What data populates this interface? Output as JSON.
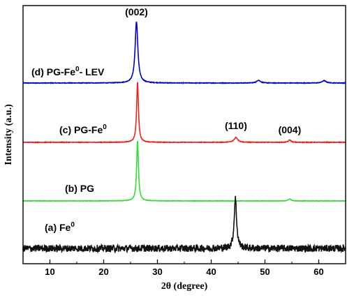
{
  "chart_data": {
    "type": "line",
    "title": "",
    "xlabel": "2θ (degree)",
    "ylabel": "Intensity (a.u.)",
    "xlim": [
      5,
      65
    ],
    "x_ticks": [
      "10",
      "20",
      "30",
      "40",
      "50",
      "60"
    ],
    "y_ticks_labeled": false,
    "grid": false,
    "legend": "inline",
    "series": [
      {
        "name": "(d) PG-Fe",
        "name_superscript": "0",
        "name_suffix": "- LEV",
        "color": "#0000cc",
        "baseline": 0.0,
        "noise": 0.004,
        "peaks": [
          {
            "x": 26.1,
            "height": 0.88,
            "width": 0.45
          },
          {
            "x": 48.8,
            "height": 0.04,
            "width": 0.6
          },
          {
            "x": 61.0,
            "height": 0.035,
            "width": 0.6
          }
        ]
      },
      {
        "name": "(c) PG-Fe",
        "name_superscript": "0",
        "name_suffix": "",
        "color": "#ee2222",
        "baseline": 0.0,
        "noise": 0.004,
        "peaks": [
          {
            "x": 26.3,
            "height": 0.86,
            "width": 0.3
          },
          {
            "x": 44.6,
            "height": 0.07,
            "width": 0.6
          },
          {
            "x": 54.6,
            "height": 0.035,
            "width": 0.4
          }
        ]
      },
      {
        "name": "(b) PG",
        "name_superscript": "",
        "name_suffix": "",
        "color": "#33dd33",
        "baseline": 0.0,
        "noise": 0.003,
        "peaks": [
          {
            "x": 26.3,
            "height": 0.86,
            "width": 0.3
          },
          {
            "x": 54.6,
            "height": 0.03,
            "width": 0.4
          }
        ]
      },
      {
        "name": "(a) Fe",
        "name_superscript": "0",
        "name_suffix": "",
        "color": "#111111",
        "baseline": 0.0,
        "noise": 0.05,
        "peaks": [
          {
            "x": 44.5,
            "height": 0.72,
            "width": 0.4
          }
        ]
      }
    ],
    "annotations": [
      {
        "text": "(002)",
        "x": 26.1
      },
      {
        "text": "(110)",
        "x": 44.6
      },
      {
        "text": "(004)",
        "x": 54.6
      }
    ]
  }
}
